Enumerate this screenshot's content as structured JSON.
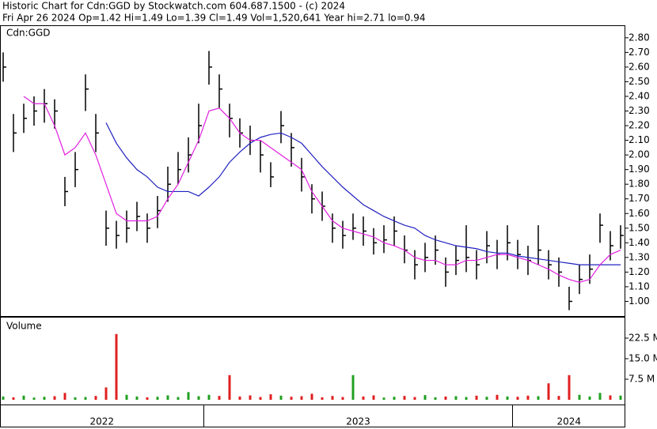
{
  "chart_data": {
    "type": "ohlc",
    "title": "Historic Chart for Cdn:GGD by Stockwatch.com 604.687.1500 - (c) 2024",
    "subtitle": "Fri Apr 26 2024  Op=1.42  Hi=1.49  Lo=1.39  Cl=1.49  Vol=1,520,641  Year hi=2.71  lo=0.94",
    "symbol_label": "Cdn:GGD",
    "volume_label": "Volume",
    "ma_fast_color": "#e020e0",
    "ma_slow_color": "#2020c0",
    "up_color": "#20a020",
    "down_color": "#e02020",
    "ylim": [
      0.9,
      2.88
    ],
    "yticks": [
      {
        "value": 1,
        "label": "1.00"
      },
      {
        "value": 1.1,
        "label": "1.10"
      },
      {
        "value": 1.2,
        "label": "1.20"
      },
      {
        "value": 1.3,
        "label": "1.30"
      },
      {
        "value": 1.4,
        "label": "1.40"
      },
      {
        "value": 1.5,
        "label": "1.50"
      },
      {
        "value": 1.6,
        "label": "1.60"
      },
      {
        "value": 1.7,
        "label": "1.70"
      },
      {
        "value": 1.8,
        "label": "1.80"
      },
      {
        "value": 1.9,
        "label": "1.90"
      },
      {
        "value": 2,
        "label": "2.00"
      },
      {
        "value": 2.1,
        "label": "2.10"
      },
      {
        "value": 2.2,
        "label": "2.20"
      },
      {
        "value": 2.3,
        "label": "2.30"
      },
      {
        "value": 2.4,
        "label": "2.40"
      },
      {
        "value": 2.5,
        "label": "2.50"
      },
      {
        "value": 2.6,
        "label": "2.60"
      },
      {
        "value": 2.7,
        "label": "2.70"
      },
      {
        "value": 2.8,
        "label": "2.80"
      }
    ],
    "volume_ylim": [
      0,
      30000000
    ],
    "volume_ticks": [
      {
        "value": 7500000,
        "label": "7.5 M"
      },
      {
        "value": 15000000,
        "label": "15.0 M"
      },
      {
        "value": 22500000,
        "label": "22.5 M"
      }
    ],
    "periods": [
      {
        "label": "2022",
        "high": [
          2.7,
          2.28,
          2.35,
          2.4,
          2.45,
          2.38,
          1.85,
          2.02,
          2.55,
          2.28,
          1.62,
          1.55,
          1.62,
          1.68,
          1.6,
          1.72,
          1.92,
          2.02,
          2.12,
          2.35
        ],
        "low": [
          2.5,
          2.02,
          2.15,
          2.2,
          2.22,
          2.18,
          1.65,
          1.78,
          2.3,
          2.02,
          1.38,
          1.36,
          1.4,
          1.48,
          1.4,
          1.5,
          1.68,
          1.8,
          1.88,
          2.08
        ],
        "close": [
          2.6,
          2.15,
          2.25,
          2.3,
          2.35,
          2.3,
          1.75,
          1.9,
          2.45,
          2.15,
          1.5,
          1.45,
          1.5,
          1.58,
          1.5,
          1.62,
          1.8,
          1.9,
          2.0,
          2.2
        ],
        "ma_fast": [
          null,
          null,
          2.4,
          2.35,
          2.35,
          2.2,
          2.0,
          2.05,
          2.15,
          2.0,
          1.8,
          1.6,
          1.55,
          1.55,
          1.55,
          1.58,
          1.7,
          1.8,
          1.95,
          2.1
        ],
        "ma_slow": [
          null,
          null,
          null,
          null,
          null,
          null,
          null,
          null,
          null,
          null,
          2.22,
          2.08,
          1.98,
          1.9,
          1.85,
          1.78,
          1.75,
          1.75,
          1.75,
          1.72
        ],
        "volume": [
          1200000,
          900000,
          1500000,
          800000,
          1100000,
          1300000,
          2500000,
          900000,
          1000000,
          1400000,
          4500000,
          24000000,
          1800000,
          1200000,
          900000,
          1100000,
          1600000,
          1000000,
          2800000,
          1300000
        ]
      },
      {
        "label": "2023",
        "high": [
          2.71,
          2.55,
          2.35,
          2.25,
          2.2,
          2.1,
          1.95,
          2.3,
          2.15,
          1.98,
          1.8,
          1.75,
          1.6,
          1.55,
          1.6,
          1.58,
          1.5,
          1.52,
          1.58,
          1.45,
          1.35,
          1.4,
          1.45,
          1.3,
          1.38,
          1.52,
          1.35,
          1.48,
          1.42,
          1.52
        ],
        "low": [
          2.48,
          2.32,
          2.12,
          2.05,
          2.0,
          1.88,
          1.78,
          2.08,
          1.92,
          1.75,
          1.6,
          1.55,
          1.4,
          1.36,
          1.42,
          1.38,
          1.32,
          1.33,
          1.38,
          1.26,
          1.15,
          1.2,
          1.25,
          1.1,
          1.18,
          1.2,
          1.15,
          1.26,
          1.22,
          1.28
        ],
        "close": [
          2.6,
          2.45,
          2.25,
          2.15,
          2.1,
          2.0,
          1.85,
          2.2,
          2.05,
          1.85,
          1.7,
          1.65,
          1.5,
          1.45,
          1.5,
          1.48,
          1.4,
          1.42,
          1.48,
          1.35,
          1.25,
          1.3,
          1.35,
          1.2,
          1.28,
          1.3,
          1.25,
          1.38,
          1.32,
          1.4
        ],
        "ma_fast": [
          2.3,
          2.32,
          2.25,
          2.15,
          2.1,
          2.1,
          2.05,
          2.0,
          1.95,
          1.9,
          1.75,
          1.65,
          1.55,
          1.5,
          1.48,
          1.46,
          1.44,
          1.4,
          1.38,
          1.35,
          1.3,
          1.28,
          1.28,
          1.25,
          1.25,
          1.28,
          1.28,
          1.3,
          1.32,
          1.32
        ],
        "ma_slow": [
          1.78,
          1.85,
          1.95,
          2.02,
          2.08,
          2.12,
          2.14,
          2.15,
          2.12,
          2.08,
          2.0,
          1.92,
          1.85,
          1.78,
          1.72,
          1.66,
          1.62,
          1.58,
          1.55,
          1.52,
          1.5,
          1.45,
          1.42,
          1.4,
          1.38,
          1.37,
          1.36,
          1.34,
          1.33,
          1.33
        ],
        "volume": [
          1800000,
          1400000,
          9000000,
          1200000,
          1600000,
          1000000,
          2000000,
          1500000,
          1100000,
          1300000,
          2200000,
          900000,
          1400000,
          1000000,
          9000000,
          1200000,
          1600000,
          800000,
          1100000,
          1400000,
          1000000,
          1700000,
          900000,
          1200000,
          1300000,
          1000000,
          1500000,
          1100000,
          1800000,
          1200000
        ]
      },
      {
        "label": "2024",
        "high": [
          1.42,
          1.38,
          1.52,
          1.35,
          1.3,
          1.1,
          1.25,
          1.32,
          1.6,
          1.48,
          1.52
        ],
        "low": [
          1.22,
          1.18,
          1.25,
          1.15,
          1.1,
          0.94,
          1.05,
          1.12,
          1.4,
          1.28,
          1.36
        ],
        "close": [
          1.32,
          1.28,
          1.35,
          1.25,
          1.2,
          1.0,
          1.15,
          1.22,
          1.52,
          1.38,
          1.45
        ],
        "ma_fast": [
          1.3,
          1.28,
          1.25,
          1.22,
          1.18,
          1.15,
          1.13,
          1.15,
          1.25,
          1.32,
          1.35
        ],
        "ma_slow": [
          1.31,
          1.3,
          1.29,
          1.28,
          1.27,
          1.26,
          1.25,
          1.25,
          1.25,
          1.25,
          1.25
        ],
        "volume": [
          1100000,
          1500000,
          1300000,
          6000000,
          1400000,
          9000000,
          1800000,
          1200000,
          2500000,
          1600000,
          1520641
        ]
      }
    ]
  }
}
